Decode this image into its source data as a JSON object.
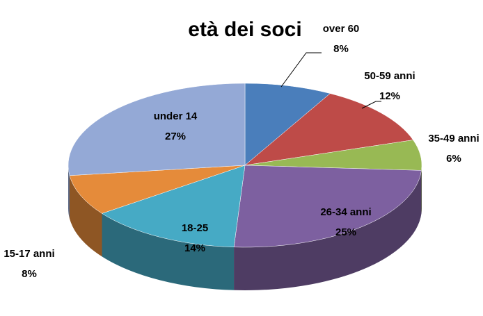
{
  "chart_data": {
    "type": "pie",
    "title": "età dei soci",
    "categories": [
      "over 60",
      "50-59 anni",
      "35-49 anni",
      "26-34 anni",
      "18-25",
      "15-17 anni",
      "under 14"
    ],
    "values": [
      8,
      12,
      6,
      25,
      14,
      8,
      27
    ],
    "value_labels": [
      "8%",
      "12%",
      "6%",
      "25%",
      "14%",
      "8%",
      "27%"
    ],
    "colors": [
      "#4a7ebb",
      "#be4b48",
      "#98b954",
      "#7d60a0",
      "#46aac5",
      "#e58b3a",
      "#94a9d6"
    ]
  }
}
